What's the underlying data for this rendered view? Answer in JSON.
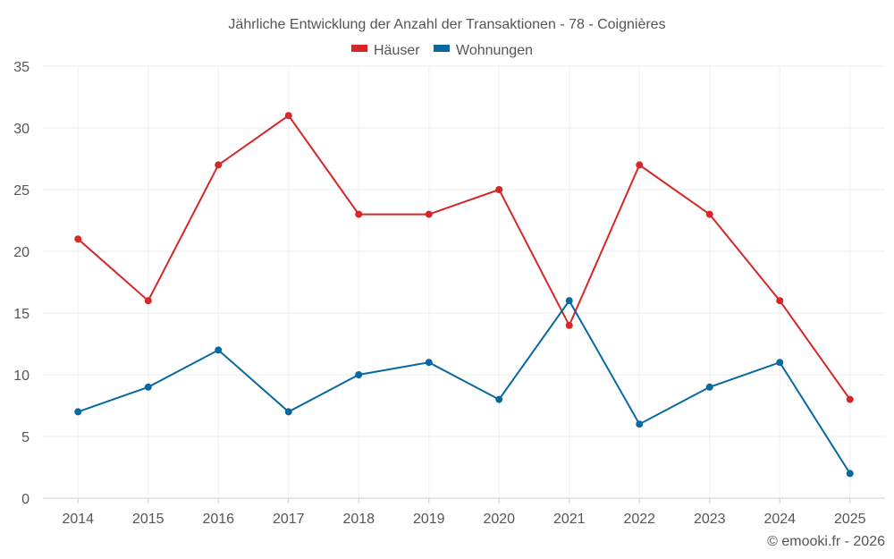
{
  "chart_data": {
    "type": "line",
    "title": "Jährliche Entwicklung der Anzahl der Transaktionen - 78 - Coignières",
    "xlabel": "",
    "ylabel": "",
    "categories": [
      "2014",
      "2015",
      "2016",
      "2017",
      "2018",
      "2019",
      "2020",
      "2021",
      "2022",
      "2023",
      "2024",
      "2025"
    ],
    "ylim": [
      0,
      35
    ],
    "yticks": [
      0,
      5,
      10,
      15,
      20,
      25,
      30,
      35
    ],
    "grid": true,
    "legend_position": "top-center",
    "series": [
      {
        "name": "Häuser",
        "color": "#d62728",
        "values": [
          21,
          16,
          27,
          31,
          23,
          23,
          25,
          14,
          27,
          23,
          16,
          8
        ]
      },
      {
        "name": "Wohnungen",
        "color": "#0868a0",
        "values": [
          7,
          9,
          12,
          7,
          10,
          11,
          8,
          16,
          6,
          9,
          11,
          2
        ]
      }
    ]
  },
  "credit": "© emooki.fr - 2026"
}
